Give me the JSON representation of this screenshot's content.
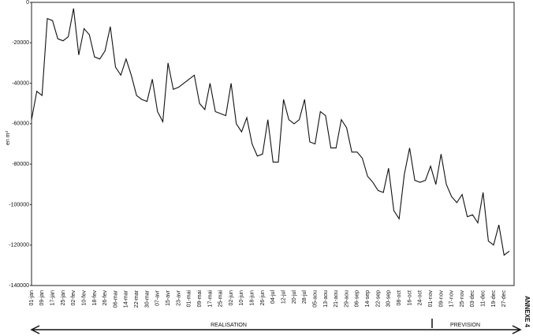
{
  "chart_data": {
    "type": "line",
    "y_label": "en m³",
    "categories": [
      "01-jan",
      null,
      "09-jan",
      null,
      "17-jan",
      null,
      "25-jan",
      null,
      "02-fev",
      null,
      "10-fev",
      null,
      "18-fev",
      null,
      "26-fev",
      null,
      "06-mar",
      null,
      "14-mar",
      null,
      "22-mar",
      null,
      "30-mar",
      null,
      "07-avr",
      null,
      "15-avr",
      null,
      "23-avr",
      null,
      "01-mai",
      null,
      "09-mai",
      null,
      "17-mai",
      null,
      "25-mai",
      null,
      "02-jun",
      null,
      "10-jun",
      null,
      "18-jun",
      null,
      "26-jun",
      null,
      "04-jul",
      null,
      "12-jul",
      null,
      "20-jul",
      null,
      "28-jul",
      null,
      "05-aou",
      null,
      "13-aou",
      null,
      "21-aou",
      null,
      "29-aou",
      null,
      "06-sep",
      null,
      "14-sep",
      null,
      "22-sep",
      null,
      "30-sep",
      null,
      "08-oct",
      null,
      "16-oct",
      null,
      "24-oct",
      null,
      "01-nov",
      null,
      "09-nov",
      null,
      "17-nov",
      null,
      "25-nov",
      null,
      "03-dec",
      null,
      "11-dec",
      null,
      "19-dec",
      null,
      "27-dec",
      null
    ],
    "values": [
      -58000,
      -44000,
      -46000,
      -8000,
      -9000,
      -18000,
      -19000,
      -17000,
      -3000,
      -26000,
      -13000,
      -16000,
      -27000,
      -28000,
      -24000,
      -12000,
      -32000,
      -36000,
      -28000,
      -36000,
      -46000,
      -48000,
      -49000,
      -38000,
      -54000,
      -59000,
      -30000,
      -43000,
      -42000,
      -40000,
      -38000,
      -36000,
      -50000,
      -53000,
      -40000,
      -54000,
      -55000,
      -56000,
      -40000,
      -60000,
      -64000,
      -57000,
      -70000,
      -76000,
      -75000,
      -58000,
      -79000,
      -79000,
      -48000,
      -58000,
      -60000,
      -58000,
      -48000,
      -69000,
      -70000,
      -54000,
      -56000,
      -72000,
      -72000,
      -58000,
      -62000,
      -74000,
      -74000,
      -77000,
      -86000,
      -89000,
      -93000,
      -94000,
      -82000,
      -103000,
      -107000,
      -85000,
      -72000,
      -88000,
      -89000,
      -88000,
      -81000,
      -90000,
      -75000,
      -90000,
      -96000,
      -99000,
      -95000,
      -106000,
      -105000,
      -109000,
      -94000,
      -118000,
      -120000,
      -110000,
      -125000,
      -123000
    ],
    "color": "#111111",
    "ylim": [
      0,
      -140000
    ],
    "yticks": [
      0,
      -20000,
      -40000,
      -60000,
      -80000,
      -100000,
      -120000,
      -140000
    ],
    "annotations": {
      "realisation": "REALISATION",
      "prevision": "PREVISION",
      "annexe": "ANNEXE 4"
    }
  }
}
